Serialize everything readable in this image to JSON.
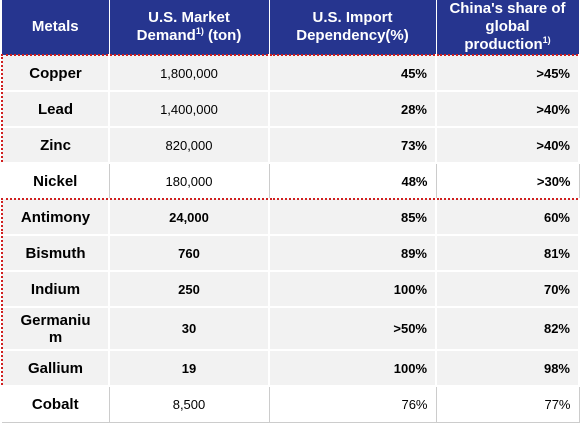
{
  "table": {
    "header": [
      {
        "text": "Metals"
      },
      {
        "text": "U.S. Market Demand",
        "sup": "1)",
        "tail": " (ton)"
      },
      {
        "text": "U.S. Import Dependency(%)"
      },
      {
        "text": "China's share of global production",
        "sup": "1)"
      }
    ],
    "rows": [
      [
        "Copper",
        "1,800,000",
        "45%",
        ">45%"
      ],
      [
        "Lead",
        "1,400,000",
        "28%",
        ">40%"
      ],
      [
        "Zinc",
        "820,000",
        "73%",
        ">40%"
      ],
      [
        "Nickel",
        "180,000",
        "48%",
        ">30%"
      ],
      [
        "Antimony",
        "24,000",
        "85%",
        "60%"
      ],
      [
        "Bismuth",
        "760",
        "89%",
        "81%"
      ],
      [
        "Indium",
        "250",
        "100%",
        "70%"
      ],
      [
        "Germanium",
        "30",
        ">50%",
        "82%"
      ],
      [
        "Gallium",
        "19",
        "100%",
        "98%"
      ],
      [
        "Cobalt",
        "8,500",
        "76%",
        "77%"
      ]
    ]
  }
}
